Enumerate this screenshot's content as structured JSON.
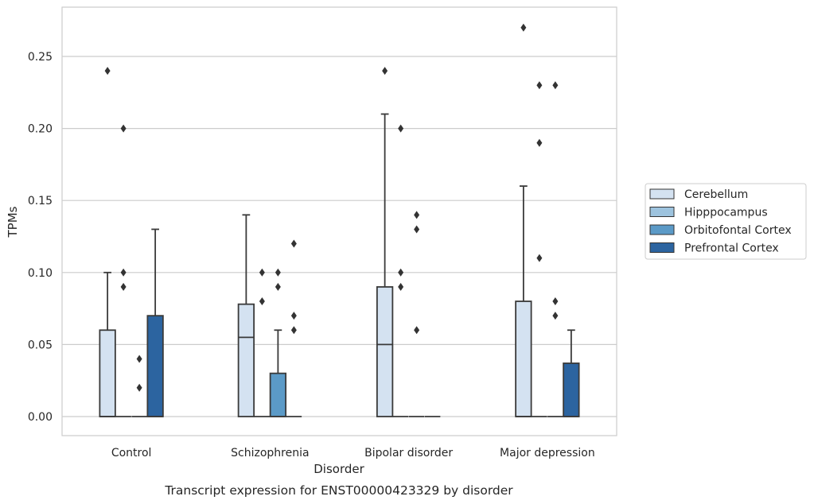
{
  "chart_data": {
    "type": "box",
    "title": "Transcript expression for ENST00000423329 by disorder",
    "xlabel": "Disorder",
    "ylabel": "TPMs",
    "ylim": [
      -0.013,
      0.284
    ],
    "yticks": [
      0.0,
      0.05,
      0.1,
      0.15,
      0.2,
      0.25
    ],
    "ytick_labels": [
      "0.00",
      "0.05",
      "0.10",
      "0.15",
      "0.20",
      "0.25"
    ],
    "grid": true,
    "legend_position": "right",
    "categories": [
      "Control",
      "Schizophrenia",
      "Bipolar disorder",
      "Major depression"
    ],
    "series": [
      {
        "name": "Cerebellum",
        "color": "#d4e2f1",
        "boxes": [
          {
            "q1": 0.0,
            "median": 0.0,
            "q3": 0.06,
            "whisker_low": 0.0,
            "whisker_high": 0.1,
            "outliers": [
              0.24
            ]
          },
          {
            "q1": 0.0,
            "median": 0.055,
            "q3": 0.078,
            "whisker_low": 0.0,
            "whisker_high": 0.14,
            "outliers": []
          },
          {
            "q1": 0.0,
            "median": 0.05,
            "q3": 0.09,
            "whisker_low": 0.0,
            "whisker_high": 0.21,
            "outliers": [
              0.24
            ]
          },
          {
            "q1": 0.0,
            "median": 0.0,
            "q3": 0.08,
            "whisker_low": 0.0,
            "whisker_high": 0.16,
            "outliers": [
              0.27
            ]
          }
        ]
      },
      {
        "name": "Hipppocampus",
        "color": "#9dc3de",
        "boxes": [
          {
            "q1": 0.0,
            "median": 0.0,
            "q3": 0.0,
            "whisker_low": 0.0,
            "whisker_high": 0.0,
            "outliers": [
              0.09,
              0.1,
              0.2
            ]
          },
          {
            "q1": 0.0,
            "median": 0.0,
            "q3": 0.0,
            "whisker_low": 0.0,
            "whisker_high": 0.0,
            "outliers": [
              0.08,
              0.1
            ]
          },
          {
            "q1": 0.0,
            "median": 0.0,
            "q3": 0.0,
            "whisker_low": 0.0,
            "whisker_high": 0.0,
            "outliers": [
              0.09,
              0.1,
              0.2
            ]
          },
          {
            "q1": 0.0,
            "median": 0.0,
            "q3": 0.0,
            "whisker_low": 0.0,
            "whisker_high": 0.0,
            "outliers": [
              0.11,
              0.19,
              0.23
            ]
          }
        ]
      },
      {
        "name": "Orbitofontal Cortex",
        "color": "#5b9ac7",
        "boxes": [
          {
            "q1": 0.0,
            "median": 0.0,
            "q3": 0.0,
            "whisker_low": 0.0,
            "whisker_high": 0.0,
            "outliers": [
              0.02,
              0.04
            ]
          },
          {
            "q1": 0.0,
            "median": 0.0,
            "q3": 0.03,
            "whisker_low": 0.0,
            "whisker_high": 0.06,
            "outliers": [
              0.09,
              0.1
            ]
          },
          {
            "q1": 0.0,
            "median": 0.0,
            "q3": 0.0,
            "whisker_low": 0.0,
            "whisker_high": 0.0,
            "outliers": [
              0.06,
              0.13,
              0.14
            ]
          },
          {
            "q1": 0.0,
            "median": 0.0,
            "q3": 0.0,
            "whisker_low": 0.0,
            "whisker_high": 0.0,
            "outliers": [
              0.07,
              0.08,
              0.23
            ]
          }
        ]
      },
      {
        "name": "Prefrontal Cortex",
        "color": "#2c64a0",
        "boxes": [
          {
            "q1": 0.0,
            "median": 0.0,
            "q3": 0.07,
            "whisker_low": 0.0,
            "whisker_high": 0.13,
            "outliers": []
          },
          {
            "q1": 0.0,
            "median": 0.0,
            "q3": 0.0,
            "whisker_low": 0.0,
            "whisker_high": 0.0,
            "outliers": [
              0.06,
              0.07,
              0.12
            ]
          },
          {
            "q1": 0.0,
            "median": 0.0,
            "q3": 0.0,
            "whisker_low": 0.0,
            "whisker_high": 0.0,
            "outliers": []
          },
          {
            "q1": 0.0,
            "median": 0.0,
            "q3": 0.037,
            "whisker_low": 0.0,
            "whisker_high": 0.06,
            "outliers": []
          }
        ]
      }
    ]
  }
}
